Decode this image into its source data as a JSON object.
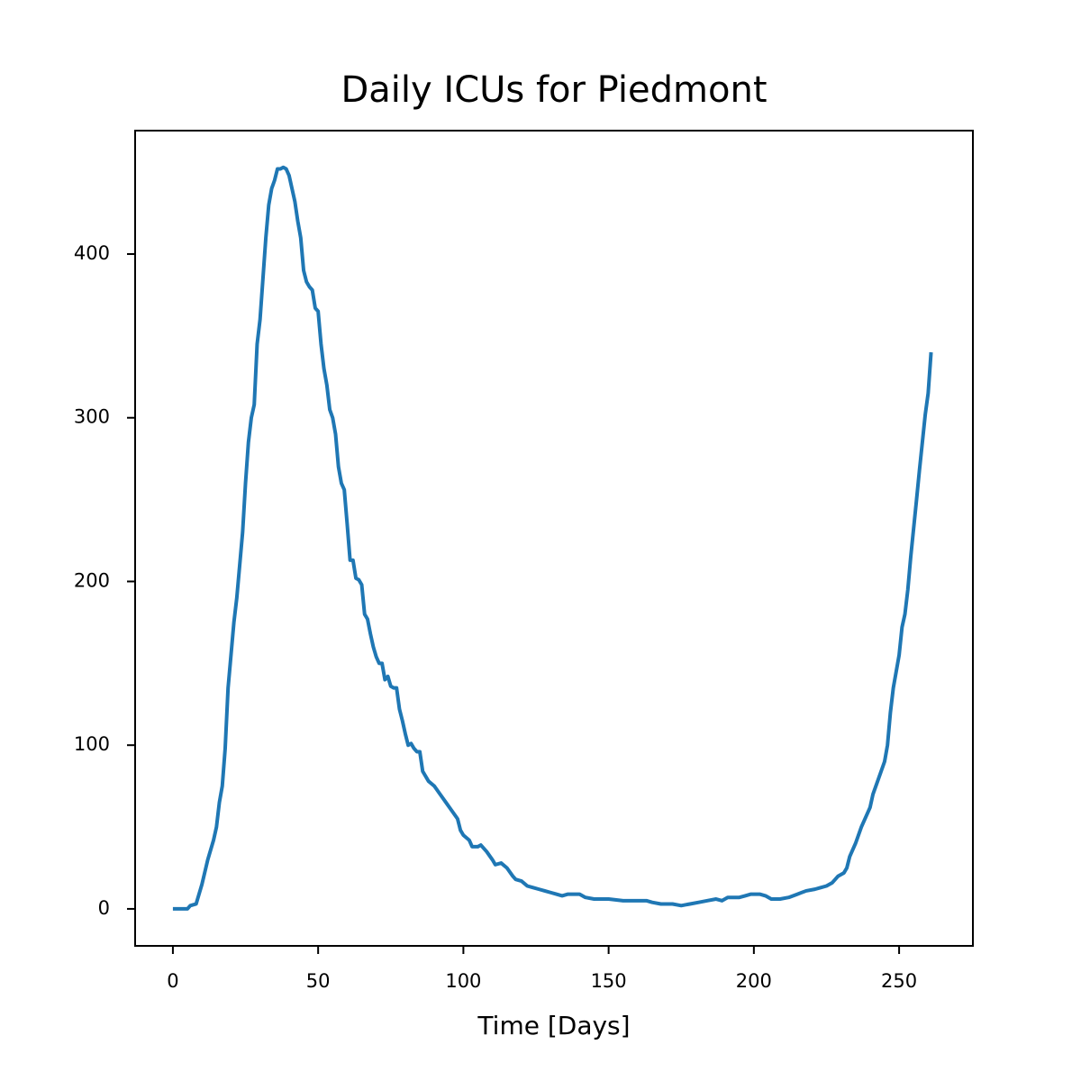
{
  "chart_data": {
    "type": "line",
    "title": "Daily ICUs for Piedmont",
    "x_label": "Time [Days]",
    "x": [
      0,
      5,
      6,
      8,
      10,
      12,
      14,
      15,
      16,
      17,
      18,
      19,
      20,
      21,
      22,
      23,
      24,
      25,
      26,
      27,
      28,
      29,
      30,
      31,
      32,
      33,
      34,
      35,
      36,
      37,
      38,
      39,
      40,
      41,
      42,
      43,
      44,
      45,
      46,
      47,
      48,
      49,
      50,
      51,
      52,
      53,
      54,
      55,
      56,
      57,
      58,
      59,
      60,
      61,
      62,
      63,
      64,
      65,
      66,
      67,
      68,
      69,
      70,
      71,
      72,
      73,
      74,
      75,
      76,
      77,
      78,
      79,
      80,
      81,
      82,
      83,
      84,
      85,
      86,
      88,
      90,
      92,
      94,
      96,
      98,
      99,
      100,
      102,
      103,
      105,
      106,
      108,
      110,
      111,
      113,
      115,
      117,
      118,
      120,
      122,
      124,
      126,
      128,
      130,
      132,
      134,
      136,
      138,
      140,
      142,
      145,
      148,
      150,
      155,
      160,
      163,
      165,
      168,
      172,
      175,
      178,
      181,
      184,
      187,
      189,
      191,
      195,
      197,
      199,
      202,
      204,
      206,
      209,
      212,
      215,
      218,
      221,
      223,
      225,
      227,
      229,
      231,
      232,
      233,
      235,
      237,
      239,
      240,
      241,
      243,
      245,
      246,
      247,
      248,
      250,
      251,
      252,
      253,
      254,
      256,
      257,
      258,
      259,
      260,
      261
    ],
    "series": [
      {
        "color": "#1f77b4",
        "values": [
          0,
          0,
          2,
          3,
          15,
          30,
          42,
          50,
          65,
          75,
          98,
          135,
          155,
          175,
          190,
          210,
          230,
          260,
          285,
          300,
          308,
          345,
          360,
          385,
          410,
          430,
          440,
          445,
          452,
          452,
          453,
          452,
          448,
          440,
          432,
          420,
          410,
          390,
          383,
          380,
          378,
          367,
          365,
          345,
          330,
          320,
          305,
          300,
          290,
          270,
          260,
          256,
          235,
          213,
          213,
          202,
          201,
          198,
          180,
          177,
          168,
          160,
          154,
          150,
          150,
          140,
          142,
          136,
          135,
          135,
          122,
          115,
          107,
          100,
          101,
          98,
          96,
          96,
          84,
          78,
          75,
          70,
          65,
          60,
          55,
          48,
          45,
          42,
          38,
          38,
          39,
          35,
          30,
          27,
          28,
          25,
          20,
          18,
          17,
          14,
          13,
          12,
          11,
          10,
          9,
          8,
          9,
          9,
          9,
          7,
          6,
          6,
          6,
          5,
          5,
          5,
          4,
          3,
          3,
          2,
          3,
          4,
          5,
          6,
          5,
          7,
          7,
          8,
          9,
          9,
          8,
          6,
          6,
          7,
          9,
          11,
          12,
          13,
          14,
          16,
          20,
          22,
          25,
          32,
          40,
          50,
          58,
          62,
          70,
          80,
          90,
          100,
          120,
          135,
          155,
          172,
          180,
          195,
          215,
          250,
          268,
          285,
          302,
          315,
          340
        ]
      }
    ],
    "xlim": [
      -13,
      275.4
    ],
    "ylim": [
      -22.6,
      475.4
    ],
    "xticks": [
      0,
      50,
      100,
      150,
      200,
      250
    ],
    "yticks": [
      0,
      100,
      200,
      300,
      400
    ]
  }
}
